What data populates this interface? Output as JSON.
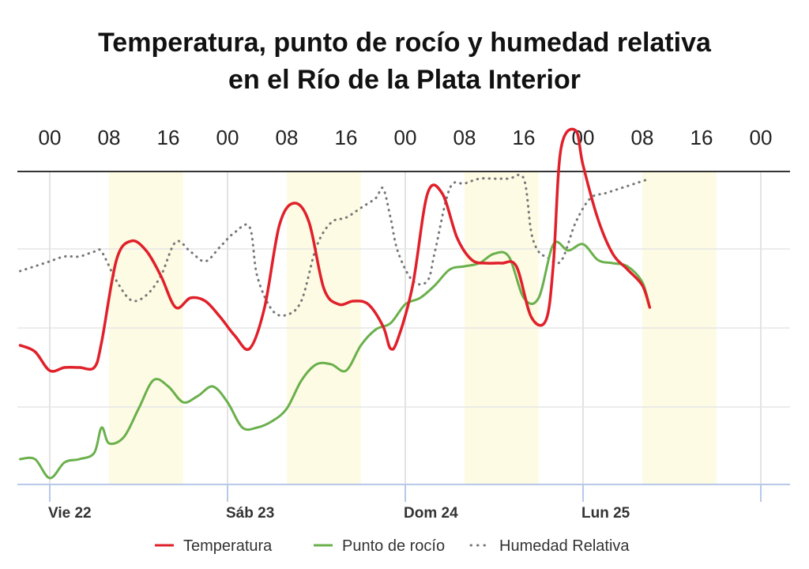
{
  "chart_data": {
    "type": "line",
    "title_line1": "Temperatura, punto de rocío y humedad relativa",
    "title_line2": "en el Río de la Plata Interior",
    "top_ticks": [
      {
        "hour": 0,
        "label": "00"
      },
      {
        "hour": 8,
        "label": "08"
      },
      {
        "hour": 16,
        "label": "16"
      },
      {
        "hour": 24,
        "label": "00"
      },
      {
        "hour": 32,
        "label": "08"
      },
      {
        "hour": 40,
        "label": "16"
      },
      {
        "hour": 48,
        "label": "00"
      },
      {
        "hour": 56,
        "label": "08"
      },
      {
        "hour": 64,
        "label": "16"
      },
      {
        "hour": 72,
        "label": "00"
      },
      {
        "hour": 80,
        "label": "08"
      },
      {
        "hour": 88,
        "label": "16"
      },
      {
        "hour": 96,
        "label": "00"
      }
    ],
    "day_labels": [
      {
        "hour": 0,
        "label": "Vie 22"
      },
      {
        "hour": 24,
        "label": "Sáb 23"
      },
      {
        "hour": 48,
        "label": "Dom 24"
      },
      {
        "hour": 72,
        "label": "Lun 25"
      }
    ],
    "x_range_hours": [
      -4,
      100
    ],
    "daylight_periods": [
      [
        8,
        18
      ],
      [
        32,
        42
      ],
      [
        56,
        66
      ],
      [
        80,
        90
      ]
    ],
    "series": [
      {
        "name": "Temperatura",
        "color": "#e0202a",
        "style": "solid",
        "points": [
          [
            -4,
            20.4
          ],
          [
            -2,
            20.2
          ],
          [
            0,
            19.6
          ],
          [
            2,
            19.7
          ],
          [
            4,
            19.7
          ],
          [
            6,
            19.7
          ],
          [
            7,
            20.5
          ],
          [
            9,
            23.1
          ],
          [
            11,
            23.7
          ],
          [
            13,
            23.4
          ],
          [
            15,
            22.6
          ],
          [
            17,
            21.6
          ],
          [
            19,
            21.9
          ],
          [
            21,
            21.8
          ],
          [
            23,
            21.3
          ],
          [
            25,
            20.7
          ],
          [
            27,
            20.3
          ],
          [
            29,
            21.6
          ],
          [
            31,
            24.2
          ],
          [
            33,
            24.9
          ],
          [
            35,
            24.3
          ],
          [
            37,
            22.2
          ],
          [
            39,
            21.7
          ],
          [
            41,
            21.8
          ],
          [
            43,
            21.7
          ],
          [
            45,
            21.0
          ],
          [
            46,
            20.3
          ],
          [
            47,
            20.6
          ],
          [
            49,
            22.3
          ],
          [
            51,
            25.2
          ],
          [
            53,
            25.2
          ],
          [
            55,
            23.8
          ],
          [
            57,
            23.1
          ],
          [
            59,
            23.0
          ],
          [
            61,
            23.0
          ],
          [
            63,
            22.9
          ],
          [
            65,
            21.3
          ],
          [
            67,
            21.2
          ],
          [
            68,
            23.0
          ],
          [
            69,
            26.6
          ],
          [
            71,
            27.2
          ],
          [
            72,
            26.1
          ],
          [
            74,
            24.4
          ],
          [
            76,
            23.3
          ],
          [
            78,
            22.8
          ],
          [
            80,
            22.3
          ],
          [
            81,
            21.6
          ]
        ]
      },
      {
        "name": "Punto de rocío",
        "color": "#6ab04c",
        "style": "solid",
        "points": [
          [
            -4,
            16.8
          ],
          [
            -2,
            16.8
          ],
          [
            0,
            16.2
          ],
          [
            2,
            16.7
          ],
          [
            4,
            16.8
          ],
          [
            6,
            17.0
          ],
          [
            7,
            17.8
          ],
          [
            8,
            17.3
          ],
          [
            10,
            17.5
          ],
          [
            12,
            18.4
          ],
          [
            14,
            19.3
          ],
          [
            16,
            19.1
          ],
          [
            18,
            18.6
          ],
          [
            20,
            18.8
          ],
          [
            22,
            19.1
          ],
          [
            24,
            18.6
          ],
          [
            26,
            17.8
          ],
          [
            28,
            17.8
          ],
          [
            30,
            18.0
          ],
          [
            32,
            18.4
          ],
          [
            34,
            19.3
          ],
          [
            36,
            19.8
          ],
          [
            38,
            19.8
          ],
          [
            40,
            19.6
          ],
          [
            42,
            20.4
          ],
          [
            44,
            20.9
          ],
          [
            46,
            21.1
          ],
          [
            48,
            21.7
          ],
          [
            50,
            21.9
          ],
          [
            52,
            22.3
          ],
          [
            54,
            22.8
          ],
          [
            56,
            22.9
          ],
          [
            58,
            23.0
          ],
          [
            60,
            23.3
          ],
          [
            62,
            23.2
          ],
          [
            64,
            21.9
          ],
          [
            66,
            21.9
          ],
          [
            68,
            23.6
          ],
          [
            70,
            23.4
          ],
          [
            72,
            23.6
          ],
          [
            74,
            23.1
          ],
          [
            76,
            23.0
          ],
          [
            78,
            22.9
          ],
          [
            80,
            22.4
          ],
          [
            81,
            21.6
          ]
        ]
      },
      {
        "name": "Humedad Relativa",
        "color": "#777777",
        "style": "dotted",
        "points": [
          [
            -4,
            82
          ],
          [
            -2,
            83
          ],
          [
            0,
            84
          ],
          [
            2,
            85
          ],
          [
            4,
            85
          ],
          [
            6,
            86
          ],
          [
            7,
            86
          ],
          [
            9,
            80
          ],
          [
            11,
            76
          ],
          [
            13,
            77
          ],
          [
            15,
            81
          ],
          [
            17,
            88
          ],
          [
            19,
            86
          ],
          [
            21,
            84
          ],
          [
            23,
            87
          ],
          [
            25,
            90
          ],
          [
            27,
            91
          ],
          [
            28,
            81
          ],
          [
            30,
            74
          ],
          [
            32,
            73
          ],
          [
            34,
            76
          ],
          [
            36,
            87
          ],
          [
            38,
            92
          ],
          [
            40,
            93
          ],
          [
            42,
            95
          ],
          [
            44,
            97
          ],
          [
            45,
            99
          ],
          [
            46,
            93
          ],
          [
            47,
            86
          ],
          [
            49,
            80
          ],
          [
            51,
            80
          ],
          [
            52,
            86
          ],
          [
            54,
            99
          ],
          [
            56,
            100
          ],
          [
            58,
            101
          ],
          [
            60,
            101
          ],
          [
            62,
            101
          ],
          [
            64,
            101
          ],
          [
            65,
            90
          ],
          [
            66,
            86
          ],
          [
            67,
            85
          ],
          [
            69,
            84
          ],
          [
            71,
            92
          ],
          [
            73,
            97
          ],
          [
            75,
            98
          ],
          [
            77,
            99
          ],
          [
            79,
            100
          ],
          [
            81,
            101
          ]
        ]
      }
    ],
    "legend": [
      {
        "name": "Temperatura",
        "color": "#e0202a",
        "style": "solid"
      },
      {
        "name": "Punto de rocío",
        "color": "#6ab04c",
        "style": "solid"
      },
      {
        "name": "Humedad Relativa",
        "color": "#777777",
        "style": "dotted"
      }
    ],
    "legend_position": "bottom",
    "temperature_range": [
      16,
      28
    ],
    "humidity_range": [
      60,
      102
    ],
    "grid": true
  }
}
